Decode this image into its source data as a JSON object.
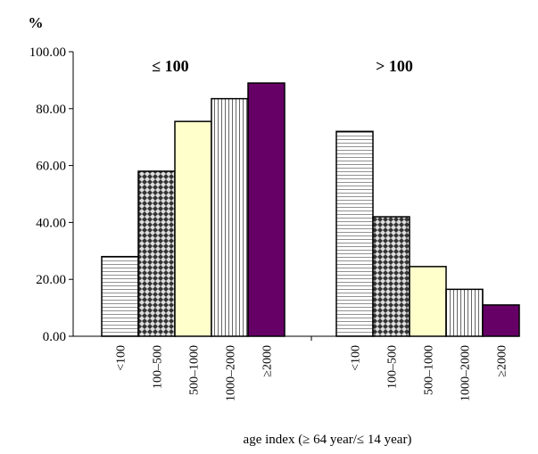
{
  "chart_data": {
    "type": "bar",
    "ylabel": "%",
    "xlabel": "age index (≥ 64 year/≤ 14 year)",
    "ylim": [
      0,
      100
    ],
    "yticks": [
      "0.00",
      "20.00",
      "40.00",
      "60.00",
      "80.00",
      "100.00"
    ],
    "grid": false,
    "legend": "none",
    "categories": [
      "<100",
      "100–500",
      "500–1000",
      "1000–2000",
      "≥2000"
    ],
    "groups": [
      {
        "label": "≤ 100",
        "values": [
          28,
          58,
          75.5,
          83.5,
          89
        ]
      },
      {
        "label": "> 100",
        "values": [
          72,
          42,
          24.5,
          16.5,
          11
        ]
      }
    ],
    "bar_styles": [
      "horizontal-lines",
      "checker",
      "solid-light-yellow",
      "vertical-lines",
      "solid-purple"
    ],
    "colors": {
      "light_yellow": "#ffffcc",
      "purple": "#660066",
      "pattern_line": "#555555",
      "checker_dark": "#333333"
    }
  }
}
